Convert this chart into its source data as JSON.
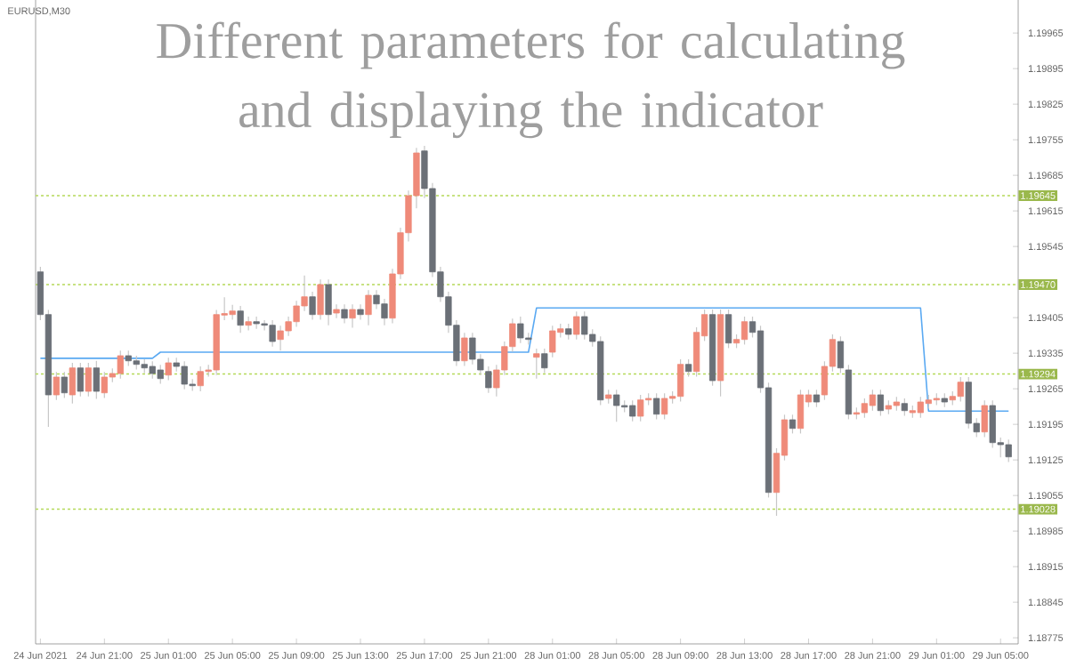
{
  "chart_data": {
    "type": "candlestick",
    "title": "Different parameters for calculating and displaying the indicator",
    "subtitle": "EURUSD,M30",
    "categories": [
      "24 Jun 2021",
      null,
      null,
      null,
      null,
      null,
      null,
      null,
      "24 Jun 21:00",
      null,
      null,
      null,
      null,
      null,
      null,
      null,
      "25 Jun 01:00",
      null,
      null,
      null,
      null,
      null,
      null,
      null,
      "25 Jun 05:00",
      null,
      null,
      null,
      null,
      null,
      null,
      null,
      "25 Jun 09:00",
      null,
      null,
      null,
      null,
      null,
      null,
      null,
      "25 Jun 13:00",
      null,
      null,
      null,
      null,
      null,
      null,
      null,
      "25 Jun 17:00",
      null,
      null,
      null,
      null,
      null,
      null,
      null,
      "25 Jun 21:00",
      null,
      null,
      null,
      null,
      null,
      null,
      null,
      "28 Jun 01:00",
      null,
      null,
      null,
      null,
      null,
      null,
      null,
      "28 Jun 05:00",
      null,
      null,
      null,
      null,
      null,
      null,
      null,
      "28 Jun 09:00",
      null,
      null,
      null,
      null,
      null,
      null,
      null,
      "28 Jun 13:00",
      null,
      null,
      null,
      null,
      null,
      null,
      null,
      "28 Jun 17:00",
      null,
      null,
      null,
      null,
      null,
      null,
      null,
      "28 Jun 21:00",
      null,
      null,
      null,
      null,
      null,
      null,
      null,
      "29 Jun 01:00",
      null,
      null,
      null,
      null,
      null,
      null,
      null,
      "29 Jun 05:00",
      null
    ],
    "ohlc": [
      [
        1.19495,
        1.19505,
        1.194,
        1.19411
      ],
      [
        1.19411,
        1.1942,
        1.1919,
        1.19253
      ],
      [
        1.19253,
        1.19298,
        1.19243,
        1.19288
      ],
      [
        1.19288,
        1.19298,
        1.19247,
        1.19257
      ],
      [
        1.19253,
        1.19316,
        1.19236,
        1.19306
      ],
      [
        1.19306,
        1.19316,
        1.1925,
        1.1926
      ],
      [
        1.1926,
        1.19316,
        1.1925,
        1.19306
      ],
      [
        1.19306,
        1.1932,
        1.19245,
        1.1926
      ],
      [
        1.19257,
        1.19298,
        1.19247,
        1.19288
      ],
      [
        1.19288,
        1.19305,
        1.19278,
        1.19295
      ],
      [
        1.19295,
        1.1934,
        1.19285,
        1.1933
      ],
      [
        1.1933,
        1.1934,
        1.1931,
        1.1932
      ],
      [
        1.1932,
        1.1933,
        1.19303,
        1.19313
      ],
      [
        1.19313,
        1.19323,
        1.19296,
        1.19306
      ],
      [
        1.19309,
        1.19319,
        1.19285,
        1.19295
      ],
      [
        1.19302,
        1.19312,
        1.19275,
        1.19285
      ],
      [
        1.19292,
        1.19326,
        1.19282,
        1.19316
      ],
      [
        1.19316,
        1.19326,
        1.19299,
        1.19309
      ],
      [
        1.19309,
        1.19319,
        1.19264,
        1.19274
      ],
      [
        1.19274,
        1.19284,
        1.19261,
        1.19271
      ],
      [
        1.19271,
        1.19309,
        1.1926,
        1.19299
      ],
      [
        1.19299,
        1.19312,
        1.19289,
        1.19302
      ],
      [
        1.19302,
        1.1942,
        1.19292,
        1.19411
      ],
      [
        1.1941,
        1.19445,
        1.194,
        1.19413
      ],
      [
        1.19411,
        1.1943,
        1.19401,
        1.19418
      ],
      [
        1.19418,
        1.19428,
        1.19375,
        1.1939
      ],
      [
        1.1939,
        1.19407,
        1.1938,
        1.19397
      ],
      [
        1.19397,
        1.19407,
        1.19383,
        1.19393
      ],
      [
        1.19393,
        1.194,
        1.1938,
        1.1939
      ],
      [
        1.1939,
        1.194,
        1.19348,
        1.19358
      ],
      [
        1.19362,
        1.19389,
        1.1934,
        1.19379
      ],
      [
        1.19379,
        1.19407,
        1.19369,
        1.19397
      ],
      [
        1.19397,
        1.19438,
        1.19387,
        1.19428
      ],
      [
        1.19428,
        1.19488,
        1.19418,
        1.19446
      ],
      [
        1.19446,
        1.19456,
        1.19401,
        1.19411
      ],
      [
        1.19411,
        1.1948,
        1.19401,
        1.1947
      ],
      [
        1.1947,
        1.1948,
        1.1939,
        1.19411
      ],
      [
        1.19414,
        1.19431,
        1.19404,
        1.19421
      ],
      [
        1.19421,
        1.19431,
        1.19394,
        1.19404
      ],
      [
        1.19404,
        1.19431,
        1.19385,
        1.19421
      ],
      [
        1.19421,
        1.19431,
        1.19401,
        1.19411
      ],
      [
        1.19411,
        1.19459,
        1.1939,
        1.19449
      ],
      [
        1.19449,
        1.19459,
        1.19422,
        1.19432
      ],
      [
        1.19432,
        1.19442,
        1.1939,
        1.19404
      ],
      [
        1.19404,
        1.19501,
        1.19394,
        1.19491
      ],
      [
        1.19491,
        1.19582,
        1.19481,
        1.19572
      ],
      [
        1.19572,
        1.19655,
        1.19555,
        1.19645
      ],
      [
        1.19645,
        1.19739,
        1.1962,
        1.19729
      ],
      [
        1.19733,
        1.19743,
        1.1964,
        1.19659
      ],
      [
        1.19659,
        1.1967,
        1.19485,
        1.19495
      ],
      [
        1.19495,
        1.19505,
        1.19436,
        1.19446
      ],
      [
        1.19446,
        1.19456,
        1.19375,
        1.1939
      ],
      [
        1.1939,
        1.194,
        1.1931,
        1.1932
      ],
      [
        1.1932,
        1.19375,
        1.1931,
        1.19365
      ],
      [
        1.19365,
        1.19375,
        1.19313,
        1.19323
      ],
      [
        1.19323,
        1.19333,
        1.19292,
        1.19302
      ],
      [
        1.19299,
        1.19309,
        1.19257,
        1.19267
      ],
      [
        1.19267,
        1.19312,
        1.1925,
        1.19302
      ],
      [
        1.19302,
        1.19358,
        1.19292,
        1.19348
      ],
      [
        1.19348,
        1.19403,
        1.19338,
        1.19393
      ],
      [
        1.19393,
        1.19407,
        1.19355,
        1.19365
      ],
      [
        1.19365,
        1.19375,
        1.19352,
        1.19362
      ],
      [
        1.19327,
        1.19344,
        1.19285,
        1.19334
      ],
      [
        1.19334,
        1.19344,
        1.19296,
        1.19306
      ],
      [
        1.19337,
        1.19389,
        1.19327,
        1.19379
      ],
      [
        1.19376,
        1.19393,
        1.19366,
        1.19383
      ],
      [
        1.19383,
        1.19393,
        1.19362,
        1.19372
      ],
      [
        1.19372,
        1.19417,
        1.19362,
        1.19407
      ],
      [
        1.19407,
        1.19417,
        1.19362,
        1.19372
      ],
      [
        1.19372,
        1.19382,
        1.19348,
        1.19358
      ],
      [
        1.19358,
        1.19368,
        1.19233,
        1.19243
      ],
      [
        1.19246,
        1.19263,
        1.19236,
        1.19253
      ],
      [
        1.19253,
        1.19263,
        1.192,
        1.19232
      ],
      [
        1.19232,
        1.19242,
        1.19219,
        1.19229
      ],
      [
        1.19232,
        1.19242,
        1.19201,
        1.19211
      ],
      [
        1.19211,
        1.19253,
        1.19201,
        1.19243
      ],
      [
        1.19243,
        1.19256,
        1.19233,
        1.19246
      ],
      [
        1.19246,
        1.19256,
        1.19205,
        1.19215
      ],
      [
        1.19215,
        1.19256,
        1.19205,
        1.19246
      ],
      [
        1.19246,
        1.1926,
        1.19236,
        1.1925
      ],
      [
        1.1925,
        1.19323,
        1.1924,
        1.19313
      ],
      [
        1.19313,
        1.19323,
        1.19289,
        1.19299
      ],
      [
        1.19299,
        1.19386,
        1.19289,
        1.19376
      ],
      [
        1.19369,
        1.19421,
        1.19359,
        1.19411
      ],
      [
        1.19411,
        1.19421,
        1.19271,
        1.19281
      ],
      [
        1.19281,
        1.19421,
        1.1925,
        1.19411
      ],
      [
        1.19411,
        1.19421,
        1.19345,
        1.19355
      ],
      [
        1.19355,
        1.19372,
        1.19345,
        1.19362
      ],
      [
        1.19362,
        1.19407,
        1.19352,
        1.19397
      ],
      [
        1.19397,
        1.19407,
        1.19366,
        1.19376
      ],
      [
        1.19379,
        1.19389,
        1.19257,
        1.19267
      ],
      [
        1.19267,
        1.19277,
        1.19051,
        1.19061
      ],
      [
        1.19061,
        1.19148,
        1.19015,
        1.19138
      ],
      [
        1.19134,
        1.19214,
        1.19124,
        1.19204
      ],
      [
        1.19204,
        1.19214,
        1.19177,
        1.19187
      ],
      [
        1.19187,
        1.19263,
        1.19177,
        1.19253
      ],
      [
        1.19239,
        1.19263,
        1.19229,
        1.19253
      ],
      [
        1.19253,
        1.19263,
        1.19229,
        1.19239
      ],
      [
        1.19253,
        1.19319,
        1.19243,
        1.19309
      ],
      [
        1.19309,
        1.19372,
        1.19299,
        1.19362
      ],
      [
        1.19358,
        1.19368,
        1.19296,
        1.19306
      ],
      [
        1.19302,
        1.19312,
        1.19205,
        1.19215
      ],
      [
        1.19215,
        1.19228,
        1.19205,
        1.19218
      ],
      [
        1.19218,
        1.19246,
        1.19208,
        1.19236
      ],
      [
        1.19232,
        1.19263,
        1.19222,
        1.19253
      ],
      [
        1.19253,
        1.19263,
        1.19212,
        1.19222
      ],
      [
        1.19225,
        1.19242,
        1.19215,
        1.19232
      ],
      [
        1.19232,
        1.19249,
        1.19222,
        1.19239
      ],
      [
        1.19236,
        1.19246,
        1.19212,
        1.19222
      ],
      [
        1.19218,
        1.19232,
        1.19208,
        1.19222
      ],
      [
        1.19218,
        1.19249,
        1.19208,
        1.19239
      ],
      [
        1.19236,
        1.19253,
        1.19226,
        1.19243
      ],
      [
        1.19243,
        1.19256,
        1.19233,
        1.19246
      ],
      [
        1.19246,
        1.19256,
        1.19229,
        1.19239
      ],
      [
        1.19243,
        1.1926,
        1.19233,
        1.1925
      ],
      [
        1.1925,
        1.19288,
        1.1924,
        1.19278
      ],
      [
        1.19278,
        1.19288,
        1.19187,
        1.19197
      ],
      [
        1.19197,
        1.19207,
        1.1917,
        1.1918
      ],
      [
        1.1918,
        1.19242,
        1.1917,
        1.19232
      ],
      [
        1.19232,
        1.19242,
        1.19149,
        1.19159
      ],
      [
        1.19159,
        1.19169,
        1.1913,
        1.19155
      ],
      [
        1.19155,
        1.19165,
        1.19121,
        1.19131
      ]
    ],
    "colors": [
      "#6b7077",
      "#6b7077",
      "#ef8a79",
      "#6b7077",
      "#ef8a79",
      "#6b7077",
      "#ef8a79",
      "#6b7077",
      "#ef8a79",
      "#ef8a79",
      "#ef8a79",
      "#6b7077",
      "#6b7077",
      "#6b7077",
      "#6b7077",
      "#6b7077",
      "#ef8a79",
      "#6b7077",
      "#6b7077",
      "#6b7077",
      "#ef8a79",
      "#ef8a79",
      "#ef8a79",
      "#ef8a79",
      "#ef8a79",
      "#6b7077",
      "#ef8a79",
      "#6b7077",
      "#6b7077",
      "#6b7077",
      "#ef8a79",
      "#ef8a79",
      "#ef8a79",
      "#ef8a79",
      "#6b7077",
      "#ef8a79",
      "#6b7077",
      "#ef8a79",
      "#6b7077",
      "#ef8a79",
      "#6b7077",
      "#ef8a79",
      "#6b7077",
      "#6b7077",
      "#ef8a79",
      "#ef8a79",
      "#ef8a79",
      "#ef8a79",
      "#6b7077",
      "#6b7077",
      "#6b7077",
      "#6b7077",
      "#6b7077",
      "#ef8a79",
      "#6b7077",
      "#6b7077",
      "#6b7077",
      "#ef8a79",
      "#ef8a79",
      "#ef8a79",
      "#6b7077",
      "#6b7077",
      "#ef8a79",
      "#6b7077",
      "#ef8a79",
      "#ef8a79",
      "#6b7077",
      "#ef8a79",
      "#6b7077",
      "#6b7077",
      "#6b7077",
      "#ef8a79",
      "#6b7077",
      "#6b7077",
      "#6b7077",
      "#ef8a79",
      "#ef8a79",
      "#6b7077",
      "#ef8a79",
      "#ef8a79",
      "#ef8a79",
      "#6b7077",
      "#ef8a79",
      "#ef8a79",
      "#6b7077",
      "#ef8a79",
      "#6b7077",
      "#ef8a79",
      "#ef8a79",
      "#6b7077",
      "#6b7077",
      "#6b7077",
      "#ef8a79",
      "#ef8a79",
      "#6b7077",
      "#ef8a79",
      "#ef8a79",
      "#6b7077",
      "#ef8a79",
      "#ef8a79",
      "#6b7077",
      "#6b7077",
      "#ef8a79",
      "#ef8a79",
      "#ef8a79",
      "#6b7077",
      "#ef8a79",
      "#ef8a79",
      "#6b7077",
      "#ef8a79",
      "#ef8a79",
      "#ef8a79",
      "#ef8a79",
      "#6b7077",
      "#ef8a79",
      "#ef8a79",
      "#6b7077",
      "#6b7077",
      "#ef8a79",
      "#6b7077",
      "#6b7077",
      "#6b7077"
    ],
    "series": [
      {
        "type": "line",
        "color": "#5aa9f2",
        "values": [
          1.19325,
          1.19325,
          1.19325,
          1.19325,
          1.19325,
          1.19325,
          1.19325,
          1.19325,
          1.19325,
          1.19325,
          1.19325,
          1.19325,
          1.19325,
          1.19325,
          1.19325,
          1.19337,
          1.19337,
          1.19337,
          1.19337,
          1.19337,
          1.19337,
          1.19337,
          1.19337,
          1.19337,
          1.19337,
          1.19337,
          1.19337,
          1.19337,
          1.19337,
          1.19337,
          1.19337,
          1.19337,
          1.19337,
          1.19337,
          1.19337,
          1.19337,
          1.19337,
          1.19337,
          1.19337,
          1.19337,
          1.19337,
          1.19337,
          1.19337,
          1.19337,
          1.19337,
          1.19337,
          1.19337,
          1.19337,
          1.19337,
          1.19337,
          1.19337,
          1.19337,
          1.19337,
          1.19337,
          1.19337,
          1.19337,
          1.19337,
          1.19337,
          1.19337,
          1.19337,
          1.19337,
          1.19337,
          1.19424,
          1.19424,
          1.19424,
          1.19424,
          1.19424,
          1.19424,
          1.19424,
          1.19424,
          1.19424,
          1.19424,
          1.19424,
          1.19424,
          1.19424,
          1.19424,
          1.19424,
          1.19424,
          1.19424,
          1.19424,
          1.19424,
          1.19424,
          1.19424,
          1.19424,
          1.19424,
          1.19424,
          1.19424,
          1.19424,
          1.19424,
          1.19424,
          1.19424,
          1.19424,
          1.19424,
          1.19424,
          1.19424,
          1.19424,
          1.19424,
          1.19424,
          1.19424,
          1.19424,
          1.19424,
          1.19424,
          1.19424,
          1.19424,
          1.19424,
          1.19424,
          1.19424,
          1.19424,
          1.19424,
          1.19424,
          1.19424,
          1.19221,
          1.19221,
          1.19221,
          1.19221,
          1.19221,
          1.19221,
          1.19221,
          1.19221,
          1.19221,
          1.19221,
          1.19221
        ]
      }
    ],
    "ref_lines": [
      {
        "axis": "y",
        "value": 1.19645,
        "label": "1.19645",
        "color": "#b5d95a",
        "line_style": "dotted"
      },
      {
        "axis": "y",
        "value": 1.1947,
        "label": "1.19470",
        "color": "#b5d95a",
        "line_style": "dotted"
      },
      {
        "axis": "y",
        "value": 1.19294,
        "label": "1.19294",
        "color": "#b5d95a",
        "line_style": "dotted"
      },
      {
        "axis": "y",
        "value": 1.19028,
        "label": "1.19028",
        "color": "#b5d95a",
        "line_style": "dotted"
      }
    ],
    "ylim": [
      1.18763,
      1.2003
    ],
    "yticks": [
      1.18775,
      1.18845,
      1.18915,
      1.18985,
      1.19055,
      1.19125,
      1.19195,
      1.19265,
      1.19335,
      1.19405,
      1.19545,
      1.19615,
      1.19685,
      1.19755,
      1.19825,
      1.19895,
      1.19965
    ]
  }
}
